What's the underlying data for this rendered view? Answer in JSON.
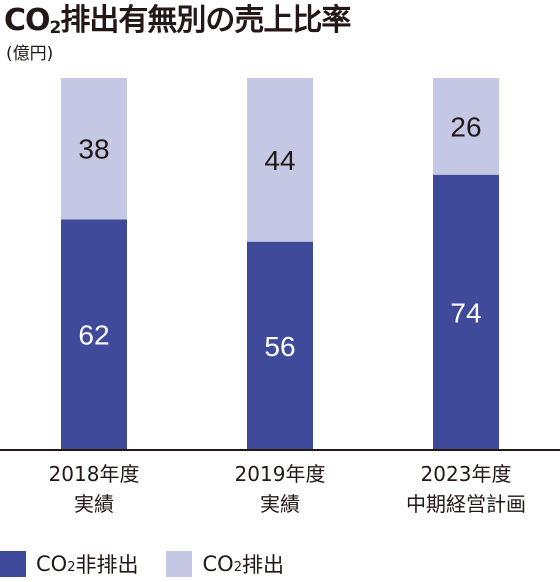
{
  "chart_data": {
    "type": "bar",
    "stacked": true,
    "title_main": "CO",
    "title_sub": "2",
    "title_rest": "排出有無別の売上比率",
    "unit": "(億円)",
    "categories": [
      [
        "2018年度",
        "実績"
      ],
      [
        "2019年度",
        "実績"
      ],
      [
        "2023年度",
        "中期経営計画"
      ]
    ],
    "series": [
      {
        "name_main": "CO",
        "name_sub": "2",
        "name_rest": "非排出",
        "color": "#3f4a9b",
        "text_color": "#ffffff",
        "values": [
          62,
          56,
          74
        ]
      },
      {
        "name_main": "CO",
        "name_sub": "2",
        "name_rest": "排出",
        "color": "#c5c8e5",
        "text_color": "#231815",
        "values": [
          38,
          44,
          26
        ]
      }
    ],
    "ylim": [
      0,
      100
    ],
    "grid": false,
    "legend_position": "bottom-left"
  }
}
